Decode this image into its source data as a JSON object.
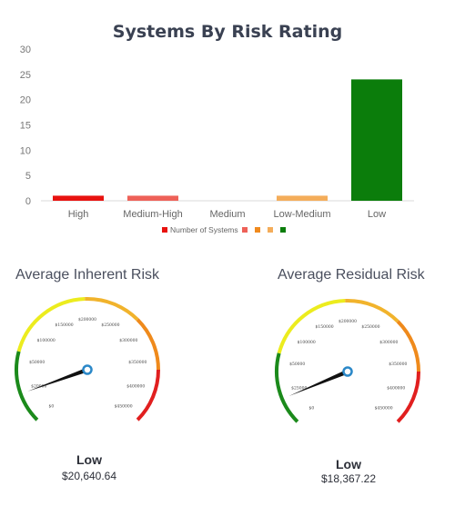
{
  "chart_data": {
    "type": "bar",
    "title": "Systems By Risk Rating",
    "categories": [
      "High",
      "Medium-High",
      "Medium",
      "Low-Medium",
      "Low"
    ],
    "series": [
      {
        "name": "Number of Systems",
        "values": [
          1,
          1,
          0,
          1,
          24
        ]
      }
    ],
    "bar_colors": [
      "#e8120f",
      "#ee6158",
      "#f08a1e",
      "#f4ad5a",
      "#0b7d0b"
    ],
    "ylim": [
      0,
      30
    ],
    "yticks": [
      0,
      5,
      10,
      15,
      20,
      25,
      30
    ],
    "grid": false,
    "legend": {
      "position": "bottom",
      "label": "Number of Systems",
      "swatches": [
        "#e8120f",
        "#ee6158",
        "#f08a1e",
        "#f4ad5a",
        "#0b7d0b"
      ]
    }
  },
  "gauges": [
    {
      "id": "inherent",
      "title": "Average Inherent Risk",
      "rating": "Low",
      "value_text": "$20,640.64",
      "value": 20640.64,
      "max": 400000,
      "tick_labels": [
        "$0",
        "$20000",
        "$50000",
        "$100000",
        "$150000",
        "$200000",
        "$250000",
        "$300000",
        "$350000",
        "$400000",
        "$450000"
      ]
    },
    {
      "id": "residual",
      "title": "Average Residual Risk",
      "rating": "Low",
      "value_text": "$18,367.22",
      "value": 18367.22,
      "max": 400000,
      "tick_labels": [
        "$0",
        "$25000",
        "$50000",
        "$100000",
        "$150000",
        "$200000",
        "$250000",
        "$300000",
        "$350000",
        "$400000",
        "$450000"
      ]
    }
  ],
  "gauge_colors": {
    "green": "#1b8a1b",
    "yellow": "#ecec1e",
    "amber": "#f1b32c",
    "orange": "#ef8a1c",
    "red": "#e11f1f",
    "needle": "#111111",
    "hub": "#2b88c8"
  }
}
